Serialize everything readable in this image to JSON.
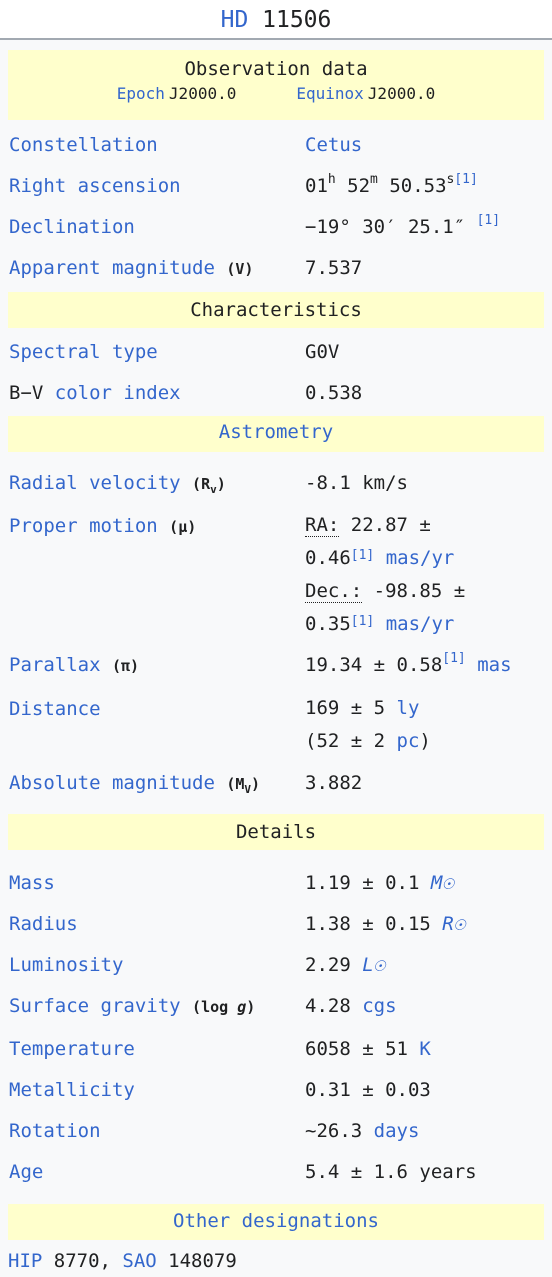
{
  "title": {
    "catalog": "HD",
    "number": " 11506"
  },
  "obs": {
    "heading": "Observation data",
    "epoch_label": "Epoch",
    "epoch_value": "J2000.0",
    "equinox_label": "Equinox",
    "equinox_value": "J2000.0"
  },
  "constellation": {
    "label": "Constellation",
    "value": "Cetus"
  },
  "ra": {
    "label": "Right ascension",
    "h": "01",
    "hs": "h",
    "m": " 52",
    "ms": "m",
    "s": " 50.53",
    "ss": "s",
    "ref": "[1]"
  },
  "dec": {
    "label": "Declination",
    "value": "−19° 30′ 25.1″",
    "ref": "[1]"
  },
  "appmag": {
    "label": "Apparent magnitude",
    "paren": "(V)",
    "value": "7.537"
  },
  "char": {
    "heading": "Characteristics"
  },
  "spectral": {
    "label": "Spectral type",
    "value": "G0V"
  },
  "bv": {
    "label_a": "B−V",
    "label_b": " color index",
    "value": "0.538"
  },
  "astrometry": {
    "heading": "Astrometry"
  },
  "rv": {
    "label": "Radial velocity",
    "paren": "(R",
    "paren_sub": "v",
    "paren_end": ")",
    "value": "-8.1 km/s"
  },
  "pm": {
    "label": "Proper motion",
    "paren": "(μ)",
    "ra_label": "RA:",
    "ra_value": " 22.87 ±",
    "ra_value2": "0.46",
    "ra_ref": "[1]",
    "ra_unit": " mas/yr",
    "dec_label": "Dec.:",
    "dec_value": " -98.85 ±",
    "dec_value2": "0.35",
    "dec_ref": "[1]",
    "dec_unit": " mas/yr"
  },
  "parallax": {
    "label": "Parallax",
    "paren": "(π)",
    "value": "19.34 ± 0.58",
    "ref": "[1]",
    "unit": " mas"
  },
  "distance": {
    "label": "Distance",
    "value1": "169 ± 5 ",
    "unit1": "ly",
    "value2a": "(52 ± 2 ",
    "unit2": "pc",
    "value2b": ")"
  },
  "absmag": {
    "label": "Absolute magnitude",
    "paren": "(M",
    "paren_sub": "V",
    "paren_end": ")",
    "value": "3.882"
  },
  "details": {
    "heading": "Details"
  },
  "mass": {
    "label": "Mass",
    "value": "1.19 ± 0.1 ",
    "unit": "M☉"
  },
  "radius": {
    "label": "Radius",
    "value": "1.38 ± 0.15 ",
    "unit": "R☉"
  },
  "luminosity": {
    "label": "Luminosity",
    "value": "2.29 ",
    "unit": "L☉"
  },
  "gravity": {
    "label": "Surface gravity",
    "paren": "(log ",
    "paren_g": "g",
    "paren_end": ")",
    "value": "4.28 ",
    "unit": "cgs"
  },
  "temperature": {
    "label": "Temperature",
    "value": "6058 ± 51 ",
    "unit": "K"
  },
  "metallicity": {
    "label": "Metallicity",
    "value": "0.31 ± 0.03"
  },
  "rotation": {
    "label": "Rotation",
    "value": "~26.3 ",
    "unit": "days"
  },
  "age": {
    "label": "Age",
    "value": "5.4 ± 1.6 years"
  },
  "other": {
    "heading": "Other designations"
  },
  "designations": {
    "hip_label": "HIP",
    "hip_value": " 8770, ",
    "sao_label": "SAO",
    "sao_value": " 148079"
  }
}
